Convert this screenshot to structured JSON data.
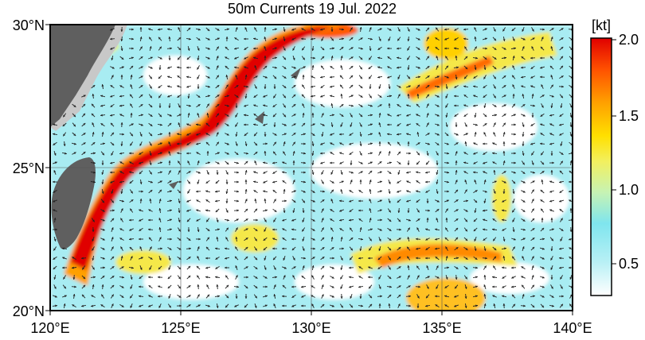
{
  "map": {
    "title": "50m Currents  19 Jul. 2022",
    "lat_labels": [
      "30°N",
      "25°N",
      "20°N"
    ],
    "lon_labels": [
      "120°E",
      "125°E",
      "130°E",
      "135°E",
      "140°E"
    ],
    "lon_range": [
      120,
      140
    ],
    "lat_range": [
      20,
      30
    ]
  },
  "colorbar": {
    "unit": "[kt]",
    "tick_labels": [
      "2.0",
      "1.5",
      "1.0",
      "0.5"
    ],
    "tick_values": [
      2.0,
      1.5,
      1.0,
      0.5
    ],
    "range": [
      0.25,
      2.0
    ],
    "stops": [
      "#ffffff",
      "#7fe5ee",
      "#c6f3b4",
      "#f2f060",
      "#ffe000",
      "#ffa000",
      "#ff5000",
      "#e00000"
    ]
  },
  "colors": {
    "land": "#5f5f5f",
    "shelf": "#c8c8c8",
    "ocean_bg": "#ffffff",
    "arrow": "#222222"
  }
}
